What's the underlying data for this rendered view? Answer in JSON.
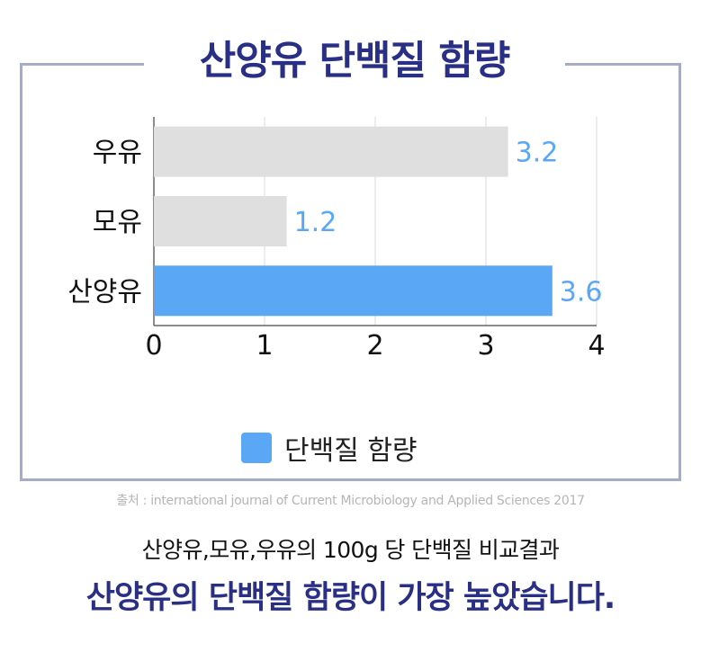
{
  "title": "산양유 단백질 함량",
  "chart_data": {
    "type": "bar",
    "orientation": "horizontal",
    "categories": [
      "우유",
      "모유",
      "산양유"
    ],
    "series": [
      {
        "name": "단백질 함량",
        "values": [
          3.2,
          1.2,
          3.6
        ]
      }
    ],
    "bar_colors": [
      "#e0dfdf",
      "#e0dfdf",
      "#5aa8f5"
    ],
    "data_labels": [
      "3.2",
      "1.2",
      "3.6"
    ],
    "data_label_color": "#5aa8f5",
    "xlim": [
      0,
      4
    ],
    "x_ticks": [
      "0",
      "1",
      "2",
      "3",
      "4"
    ],
    "grid": true,
    "legend_position": "bottom"
  },
  "legend": {
    "label": "단백질 함량",
    "color": "#5aa8f5"
  },
  "source": "출처 : international journal of Current Microbiology and Applied Sciences 2017",
  "caption_line1": "산양유,모유,우유의 100g 당 단백질 비교결과",
  "caption_line2": "산양유의 단백질 함량이 가장 높았습니다.",
  "colors": {
    "brand": "#2a2f86",
    "frame": "#a6abc8",
    "highlight": "#5aa8f5"
  }
}
